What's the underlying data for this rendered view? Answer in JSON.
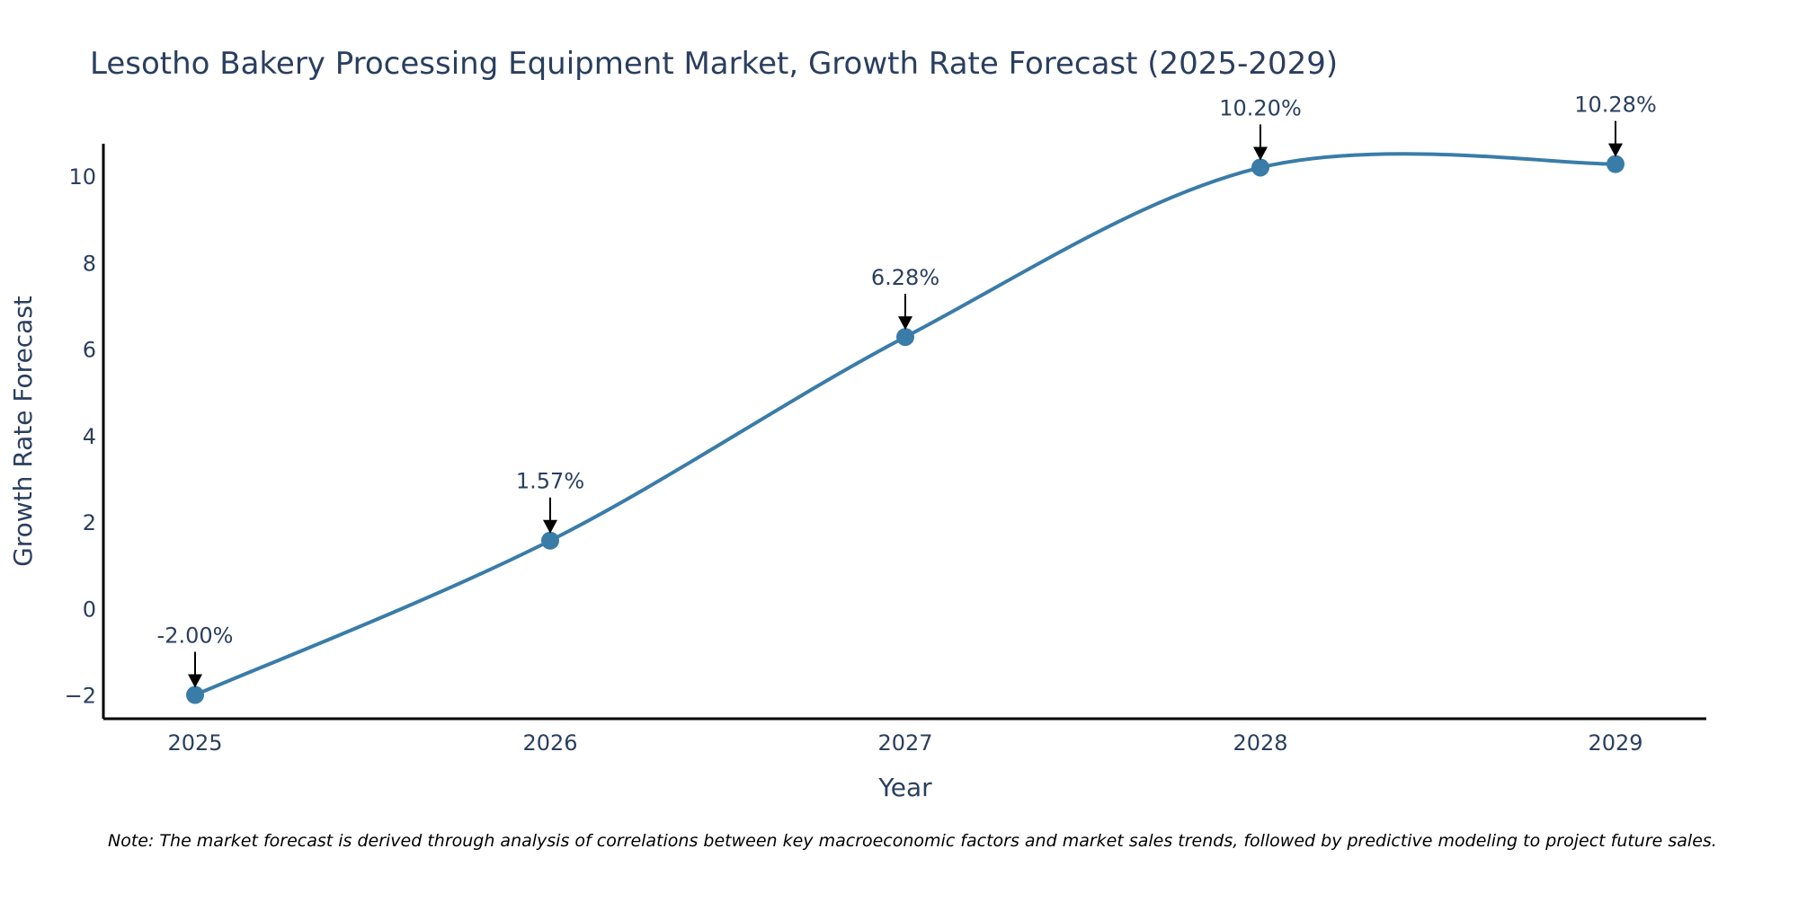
{
  "chart_data": {
    "type": "line",
    "title": "Lesotho Bakery Processing Equipment Market, Growth Rate Forecast (2025-2029)",
    "xlabel": "Year",
    "ylabel": "Growth Rate Forecast",
    "categories": [
      "2025",
      "2026",
      "2027",
      "2028",
      "2029"
    ],
    "values": [
      -2.0,
      1.57,
      6.28,
      10.2,
      10.28
    ],
    "data_labels": [
      "-2.00%",
      "1.57%",
      "6.28%",
      "10.20%",
      "10.28%"
    ],
    "yticks": [
      -2,
      0,
      2,
      4,
      6,
      8,
      10
    ],
    "ytick_labels": [
      "−2",
      "0",
      "2",
      "4",
      "6",
      "8",
      "10"
    ],
    "ylim": [
      -2.55,
      10.75
    ],
    "grid": false,
    "line_color": "#3a7ca8",
    "marker_color": "#3a7ca8",
    "note": "Note: The market forecast is derived through analysis of correlations between key macroeconomic factors and market sales trends, followed by predictive modeling to project future sales."
  }
}
